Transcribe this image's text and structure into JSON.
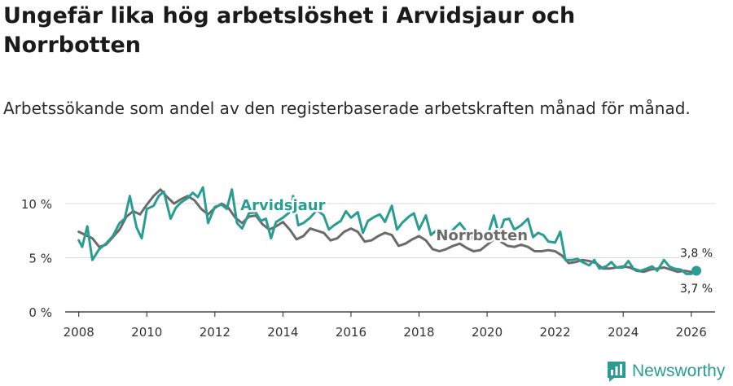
{
  "title": "Ungefär lika hög arbetslöshet i Arvidsjaur och Norrbotten",
  "subtitle": "Arbetssökande som andel av den registerbaserade arbetskraften månad för månad.",
  "brand": {
    "name": "Newsworthy",
    "color": "#2a9d93"
  },
  "chart_data": {
    "type": "line",
    "title": "Ungefär lika hög arbetslöshet i Arvidsjaur och Norrbotten",
    "xlabel": "",
    "ylabel": "",
    "xlim": [
      2007.6,
      2026.7
    ],
    "ylim": [
      0,
      10
    ],
    "x_ticks": [
      2008,
      2010,
      2012,
      2014,
      2016,
      2018,
      2020,
      2022,
      2024,
      2026
    ],
    "y_ticks": [
      0,
      5,
      10
    ],
    "y_tick_labels": [
      "0 %",
      "5 %",
      "10 %"
    ],
    "grid": true,
    "series": [
      {
        "name": "Norrbotten",
        "color": "#6b6b6b",
        "label": "Norrbotten",
        "end_label": "3,7 %",
        "points": [
          [
            2008.0,
            7.4
          ],
          [
            2008.4,
            6.8
          ],
          [
            2008.6,
            6.0
          ],
          [
            2008.8,
            6.2
          ],
          [
            2009.0,
            6.9
          ],
          [
            2009.2,
            7.6
          ],
          [
            2009.4,
            8.8
          ],
          [
            2009.6,
            9.3
          ],
          [
            2009.8,
            9.0
          ],
          [
            2010.0,
            9.9
          ],
          [
            2010.2,
            10.7
          ],
          [
            2010.4,
            11.3
          ],
          [
            2010.6,
            10.6
          ],
          [
            2010.8,
            10.0
          ],
          [
            2011.0,
            10.4
          ],
          [
            2011.2,
            10.7
          ],
          [
            2011.4,
            10.3
          ],
          [
            2011.6,
            9.5
          ],
          [
            2011.8,
            9.0
          ],
          [
            2012.0,
            9.6
          ],
          [
            2012.2,
            10.0
          ],
          [
            2012.4,
            9.6
          ],
          [
            2012.6,
            8.7
          ],
          [
            2012.8,
            8.2
          ],
          [
            2013.0,
            8.8
          ],
          [
            2013.2,
            8.9
          ],
          [
            2013.4,
            8.1
          ],
          [
            2013.6,
            7.6
          ],
          [
            2013.8,
            7.9
          ],
          [
            2014.0,
            8.3
          ],
          [
            2014.2,
            7.6
          ],
          [
            2014.4,
            6.7
          ],
          [
            2014.6,
            7.0
          ],
          [
            2014.8,
            7.7
          ],
          [
            2015.0,
            7.5
          ],
          [
            2015.2,
            7.3
          ],
          [
            2015.4,
            6.6
          ],
          [
            2015.6,
            6.8
          ],
          [
            2015.8,
            7.4
          ],
          [
            2016.0,
            7.7
          ],
          [
            2016.2,
            7.4
          ],
          [
            2016.4,
            6.5
          ],
          [
            2016.6,
            6.6
          ],
          [
            2016.8,
            7.0
          ],
          [
            2017.0,
            7.3
          ],
          [
            2017.2,
            7.1
          ],
          [
            2017.4,
            6.1
          ],
          [
            2017.6,
            6.3
          ],
          [
            2017.8,
            6.7
          ],
          [
            2018.0,
            7.0
          ],
          [
            2018.2,
            6.6
          ],
          [
            2018.4,
            5.8
          ],
          [
            2018.6,
            5.6
          ],
          [
            2018.8,
            5.8
          ],
          [
            2019.0,
            6.1
          ],
          [
            2019.2,
            6.3
          ],
          [
            2019.4,
            5.9
          ],
          [
            2019.6,
            5.6
          ],
          [
            2019.8,
            5.7
          ],
          [
            2020.0,
            6.2
          ],
          [
            2020.2,
            6.7
          ],
          [
            2020.4,
            6.5
          ],
          [
            2020.6,
            6.1
          ],
          [
            2020.8,
            6.0
          ],
          [
            2021.0,
            6.2
          ],
          [
            2021.2,
            6.0
          ],
          [
            2021.4,
            5.6
          ],
          [
            2021.6,
            5.6
          ],
          [
            2021.8,
            5.7
          ],
          [
            2022.0,
            5.6
          ],
          [
            2022.2,
            5.2
          ],
          [
            2022.4,
            4.5
          ],
          [
            2022.6,
            4.6
          ],
          [
            2022.8,
            4.8
          ],
          [
            2023.0,
            4.7
          ],
          [
            2023.2,
            4.5
          ],
          [
            2023.4,
            4.0
          ],
          [
            2023.6,
            4.0
          ],
          [
            2023.8,
            4.1
          ],
          [
            2024.0,
            4.2
          ],
          [
            2024.2,
            4.1
          ],
          [
            2024.4,
            3.8
          ],
          [
            2024.6,
            3.7
          ],
          [
            2024.8,
            3.9
          ],
          [
            2025.0,
            4.0
          ],
          [
            2025.2,
            4.1
          ],
          [
            2025.4,
            3.9
          ],
          [
            2025.6,
            3.7
          ],
          [
            2025.8,
            3.8
          ],
          [
            2026.0,
            3.7
          ],
          [
            2026.15,
            3.7
          ]
        ]
      },
      {
        "name": "Arvidsjaur",
        "color": "#2a9d93",
        "label": "Arvidsjaur",
        "end_label": "3,8 %",
        "points": [
          [
            2008.0,
            6.6
          ],
          [
            2008.1,
            6.0
          ],
          [
            2008.25,
            7.9
          ],
          [
            2008.4,
            4.8
          ],
          [
            2008.6,
            5.8
          ],
          [
            2008.8,
            6.3
          ],
          [
            2009.0,
            7.0
          ],
          [
            2009.2,
            8.2
          ],
          [
            2009.35,
            8.6
          ],
          [
            2009.5,
            10.7
          ],
          [
            2009.7,
            7.8
          ],
          [
            2009.85,
            6.8
          ],
          [
            2010.0,
            9.5
          ],
          [
            2010.2,
            9.8
          ],
          [
            2010.35,
            10.7
          ],
          [
            2010.5,
            11.1
          ],
          [
            2010.7,
            8.6
          ],
          [
            2010.85,
            9.6
          ],
          [
            2011.0,
            10.1
          ],
          [
            2011.2,
            10.5
          ],
          [
            2011.35,
            11.0
          ],
          [
            2011.5,
            10.6
          ],
          [
            2011.65,
            11.5
          ],
          [
            2011.8,
            8.2
          ],
          [
            2012.0,
            9.7
          ],
          [
            2012.2,
            9.9
          ],
          [
            2012.35,
            9.5
          ],
          [
            2012.5,
            11.3
          ],
          [
            2012.65,
            8.2
          ],
          [
            2012.8,
            7.7
          ],
          [
            2013.0,
            9.1
          ],
          [
            2013.2,
            9.2
          ],
          [
            2013.35,
            8.4
          ],
          [
            2013.5,
            8.6
          ],
          [
            2013.65,
            6.8
          ],
          [
            2013.8,
            8.3
          ],
          [
            2014.0,
            8.7
          ],
          [
            2014.2,
            9.2
          ],
          [
            2014.3,
            10.7
          ],
          [
            2014.45,
            8.0
          ],
          [
            2014.6,
            8.2
          ],
          [
            2014.8,
            8.7
          ],
          [
            2015.0,
            9.4
          ],
          [
            2015.2,
            8.9
          ],
          [
            2015.35,
            7.6
          ],
          [
            2015.5,
            8.0
          ],
          [
            2015.7,
            8.4
          ],
          [
            2015.85,
            9.3
          ],
          [
            2016.0,
            8.7
          ],
          [
            2016.2,
            9.2
          ],
          [
            2016.35,
            7.3
          ],
          [
            2016.5,
            8.4
          ],
          [
            2016.7,
            8.8
          ],
          [
            2016.85,
            9.0
          ],
          [
            2017.0,
            8.3
          ],
          [
            2017.2,
            9.8
          ],
          [
            2017.35,
            7.6
          ],
          [
            2017.5,
            8.2
          ],
          [
            2017.7,
            8.8
          ],
          [
            2017.85,
            9.1
          ],
          [
            2018.0,
            7.6
          ],
          [
            2018.2,
            8.9
          ],
          [
            2018.35,
            7.1
          ],
          [
            2018.5,
            7.5
          ],
          [
            2018.7,
            7.5
          ],
          [
            2018.85,
            6.8
          ],
          [
            2019.0,
            7.6
          ],
          [
            2019.2,
            8.2
          ],
          [
            2019.35,
            7.6
          ],
          [
            2019.5,
            6.7
          ],
          [
            2019.7,
            7.3
          ],
          [
            2019.85,
            7.0
          ],
          [
            2020.0,
            6.9
          ],
          [
            2020.2,
            8.9
          ],
          [
            2020.35,
            7.1
          ],
          [
            2020.5,
            8.5
          ],
          [
            2020.65,
            8.6
          ],
          [
            2020.8,
            7.6
          ],
          [
            2021.0,
            8.0
          ],
          [
            2021.2,
            8.6
          ],
          [
            2021.35,
            6.9
          ],
          [
            2021.5,
            7.3
          ],
          [
            2021.65,
            7.1
          ],
          [
            2021.8,
            6.5
          ],
          [
            2022.0,
            6.4
          ],
          [
            2022.15,
            7.4
          ],
          [
            2022.3,
            4.8
          ],
          [
            2022.5,
            4.8
          ],
          [
            2022.65,
            4.9
          ],
          [
            2022.8,
            4.6
          ],
          [
            2023.0,
            4.3
          ],
          [
            2023.15,
            4.8
          ],
          [
            2023.3,
            4.0
          ],
          [
            2023.5,
            4.2
          ],
          [
            2023.65,
            4.6
          ],
          [
            2023.8,
            4.1
          ],
          [
            2024.0,
            4.1
          ],
          [
            2024.15,
            4.7
          ],
          [
            2024.3,
            4.0
          ],
          [
            2024.5,
            3.8
          ],
          [
            2024.7,
            4.0
          ],
          [
            2024.85,
            4.2
          ],
          [
            2025.0,
            3.8
          ],
          [
            2025.2,
            4.8
          ],
          [
            2025.35,
            4.2
          ],
          [
            2025.5,
            4.0
          ],
          [
            2025.7,
            3.9
          ],
          [
            2025.85,
            3.5
          ],
          [
            2026.0,
            3.5
          ],
          [
            2026.15,
            3.8
          ]
        ]
      }
    ]
  }
}
